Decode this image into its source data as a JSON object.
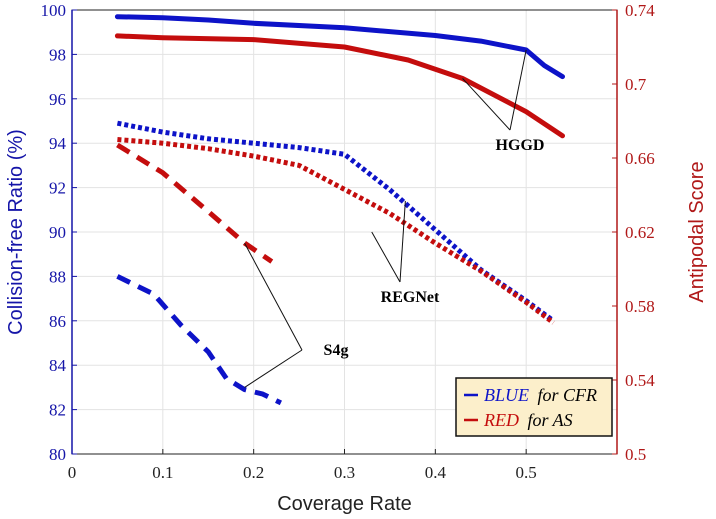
{
  "chart_data": {
    "type": "line",
    "xlabel": "Coverage Rate",
    "ylabel_left": "Collision-free Ratio (%)",
    "ylabel_right": "Antipodal Score",
    "xlim": [
      0,
      0.6
    ],
    "ylim_left": [
      80,
      100
    ],
    "ylim_right": [
      0.5,
      0.74
    ],
    "x_ticks": [
      "0",
      "0.1",
      "0.2",
      "0.3",
      "0.4",
      "0.5"
    ],
    "y_ticks_left": [
      "80",
      "82",
      "84",
      "86",
      "88",
      "90",
      "92",
      "94",
      "96",
      "98",
      "100"
    ],
    "y_ticks_right": [
      "0.5",
      "0.54",
      "0.58",
      "0.62",
      "0.66",
      "0.7",
      "0.74"
    ],
    "grid": true,
    "colors": {
      "blue": "#0d13c8",
      "red": "#c40d0d",
      "left_axis": "#1515a8",
      "right_axis": "#b01818"
    },
    "series": [
      {
        "name": "HGGD CFR",
        "method": "HGGD",
        "metric": "CFR",
        "axis": "left",
        "style": "solid",
        "color": "blue",
        "x": [
          0.05,
          0.1,
          0.15,
          0.2,
          0.3,
          0.4,
          0.45,
          0.5,
          0.52,
          0.54
        ],
        "y": [
          99.7,
          99.65,
          99.55,
          99.4,
          99.2,
          98.85,
          98.6,
          98.2,
          97.5,
          97.0
        ]
      },
      {
        "name": "HGGD AS",
        "method": "HGGD",
        "metric": "AS",
        "axis": "right",
        "style": "solid",
        "color": "red",
        "x": [
          0.05,
          0.1,
          0.2,
          0.3,
          0.37,
          0.43,
          0.5,
          0.54
        ],
        "y": [
          0.726,
          0.725,
          0.724,
          0.72,
          0.713,
          0.703,
          0.685,
          0.672
        ]
      },
      {
        "name": "REGNet CFR",
        "method": "REGNet",
        "metric": "CFR",
        "axis": "left",
        "style": "dotted",
        "color": "blue",
        "x": [
          0.05,
          0.1,
          0.15,
          0.2,
          0.25,
          0.3,
          0.35,
          0.4,
          0.45,
          0.5,
          0.53
        ],
        "y": [
          94.9,
          94.5,
          94.2,
          94.0,
          93.8,
          93.5,
          91.9,
          90.1,
          88.3,
          86.9,
          86.0
        ]
      },
      {
        "name": "REGNet AS",
        "method": "REGNet",
        "metric": "AS",
        "axis": "right",
        "style": "dotted",
        "color": "red",
        "x": [
          0.05,
          0.1,
          0.15,
          0.2,
          0.25,
          0.3,
          0.35,
          0.4,
          0.45,
          0.5,
          0.53
        ],
        "y": [
          0.67,
          0.668,
          0.665,
          0.661,
          0.656,
          0.643,
          0.63,
          0.614,
          0.599,
          0.582,
          0.571
        ]
      },
      {
        "name": "S4g CFR",
        "method": "S4g",
        "metric": "CFR",
        "axis": "left",
        "style": "dashed",
        "color": "blue",
        "x": [
          0.05,
          0.09,
          0.12,
          0.15,
          0.17,
          0.19,
          0.21,
          0.23
        ],
        "y": [
          88.0,
          87.2,
          85.8,
          84.6,
          83.4,
          82.9,
          82.7,
          82.3
        ]
      },
      {
        "name": "S4g AS",
        "method": "S4g",
        "metric": "AS",
        "axis": "right",
        "style": "dashed",
        "color": "red",
        "x": [
          0.05,
          0.1,
          0.15,
          0.19,
          0.22
        ],
        "y": [
          0.667,
          0.652,
          0.631,
          0.614,
          0.604
        ]
      }
    ],
    "annotations": [
      {
        "label": "HGGD",
        "targets": [
          [
            0.5,
            98.2,
            "left"
          ],
          [
            0.43,
            0.703,
            "right"
          ]
        ]
      },
      {
        "label": "REGNet",
        "targets": [
          [
            0.367,
            91.4,
            "left"
          ],
          [
            0.33,
            0.62,
            "right"
          ]
        ]
      },
      {
        "label": "S4g",
        "targets": [
          [
            0.19,
            83.0,
            "left"
          ],
          [
            0.19,
            0.614,
            "right"
          ]
        ]
      }
    ],
    "legend": {
      "position": "bottom-right",
      "entries": [
        {
          "color": "blue",
          "label": "BLUE",
          "suffix": "for CFR"
        },
        {
          "color": "red",
          "label": "RED",
          "suffix": "for AS"
        }
      ]
    }
  }
}
